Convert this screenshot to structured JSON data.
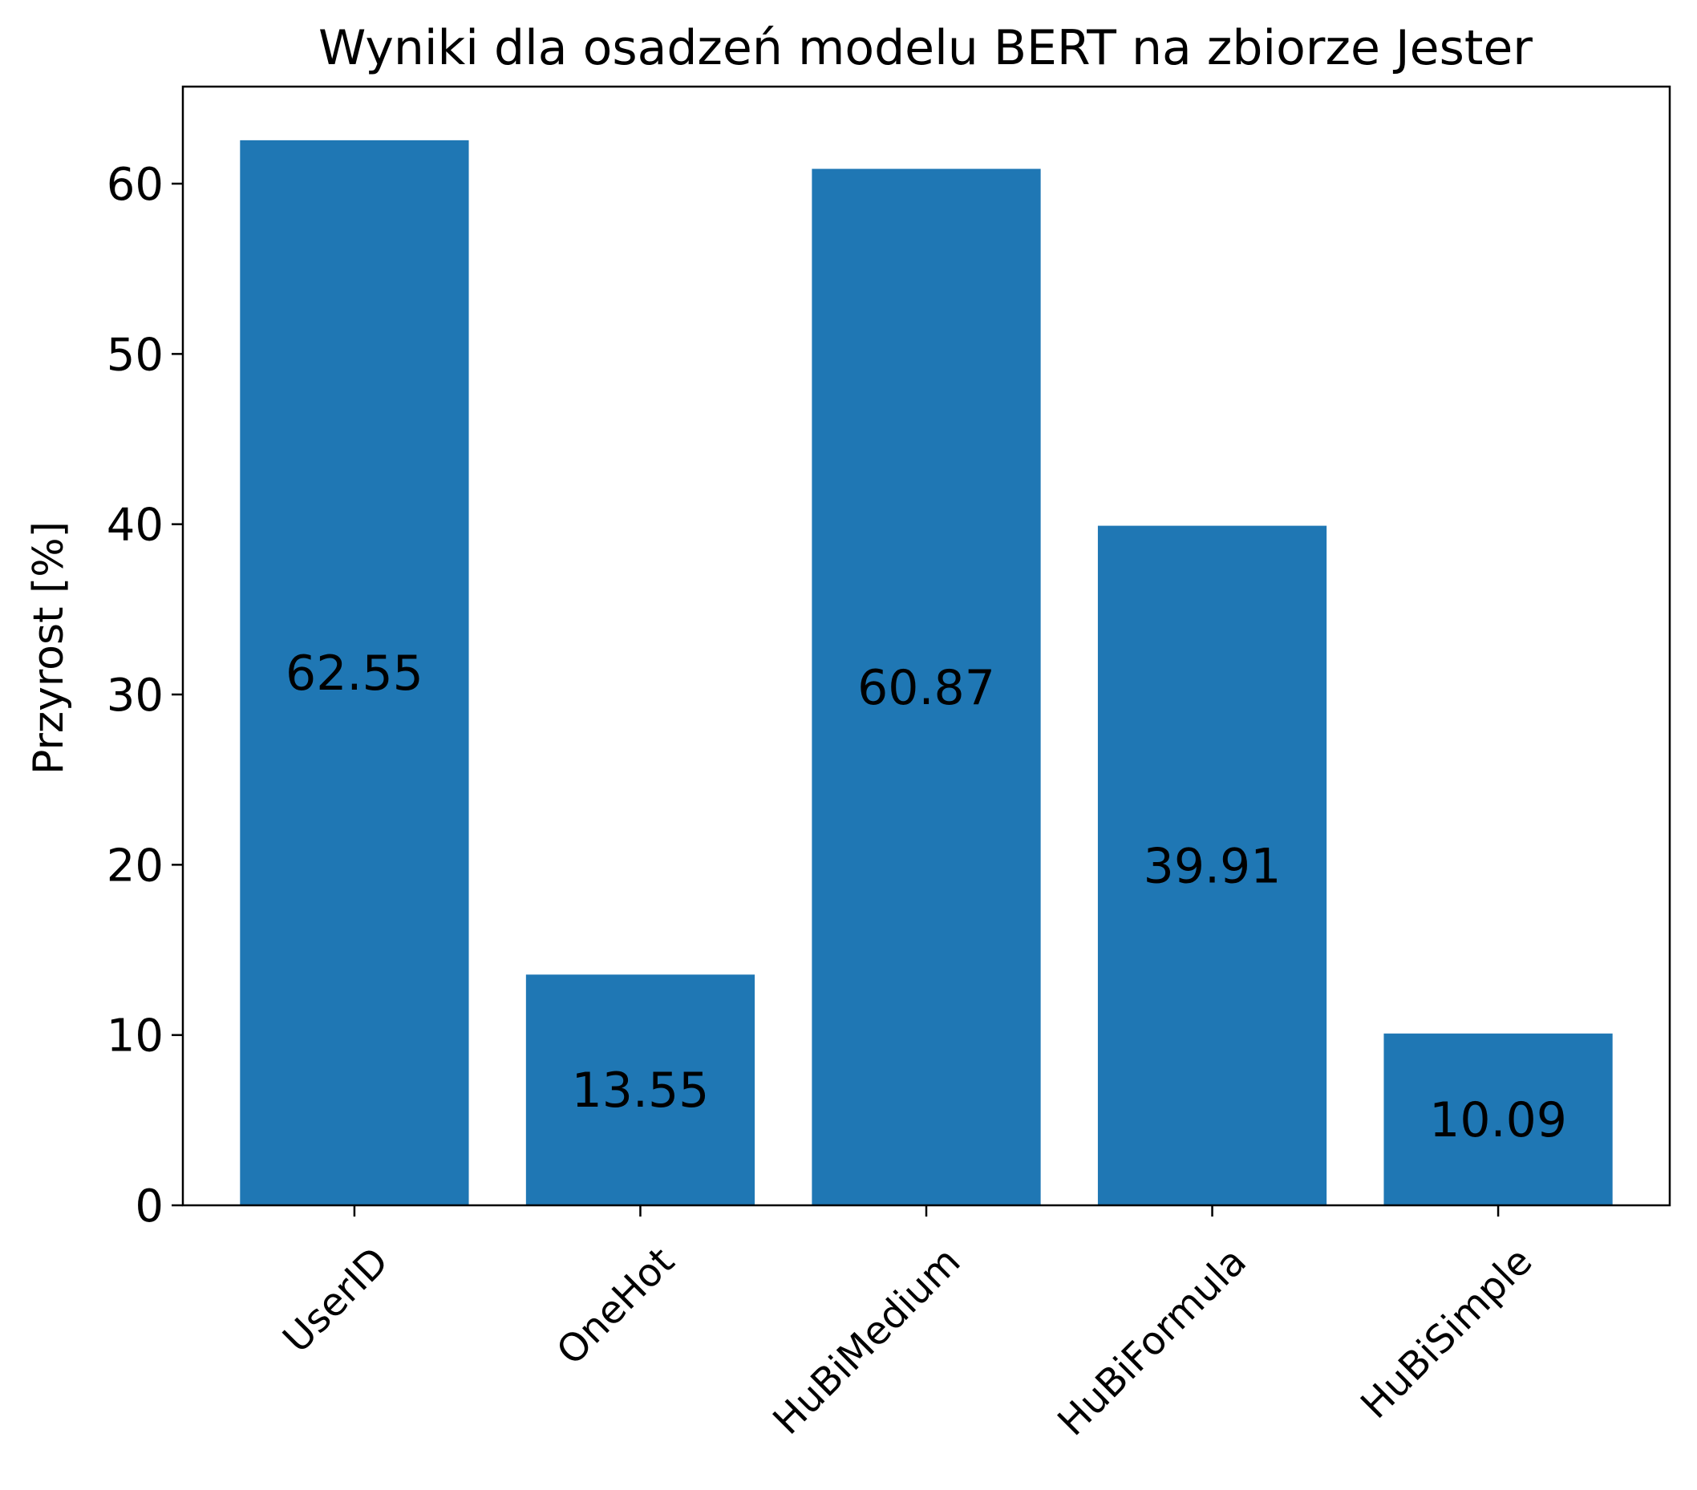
{
  "chart_data": {
    "type": "bar",
    "title": "Wyniki dla osadzeń modelu BERT na zbiorze Jester",
    "xlabel": "",
    "ylabel": "Przyrost [%]",
    "categories": [
      "UserID",
      "OneHot",
      "HuBiMedium",
      "HuBiFormula",
      "HuBiSimple"
    ],
    "values": [
      62.55,
      13.55,
      60.87,
      39.91,
      10.09
    ],
    "value_labels": [
      "62.55",
      "13.55",
      "60.87",
      "39.91",
      "10.09"
    ],
    "ylim": [
      0,
      65.7
    ],
    "yticks": [
      0,
      10,
      20,
      30,
      40,
      50,
      60
    ],
    "grid": false,
    "legend": "none",
    "bar_color": "#1f77b4"
  }
}
